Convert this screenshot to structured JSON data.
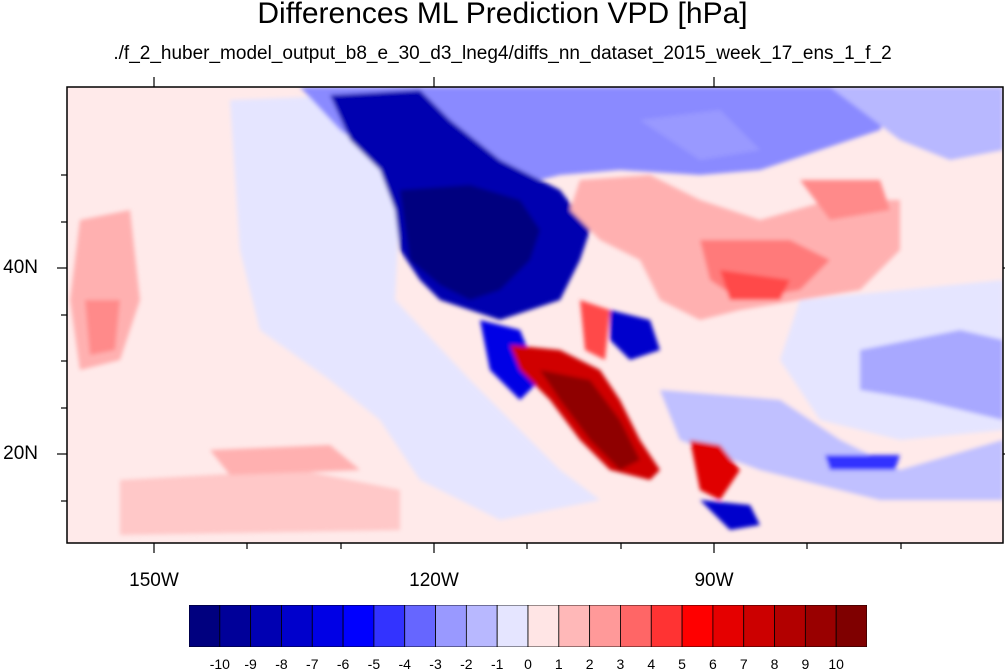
{
  "title": "Differences ML Prediction VPD [hPa]",
  "subtitle": "./f_2_huber_model_output_b8_e_30_d3_lneg4/diffs_nn_dataset_2015_week_17_ens_1_f_2",
  "map": {
    "projection": "lat-lon",
    "longitude_ticks": [
      "150W",
      "120W",
      "90W"
    ],
    "latitude_ticks": [
      "40N",
      "20N"
    ]
  },
  "colorbar": {
    "labels": [
      "-10",
      "-9",
      "-8",
      "-7",
      "-6",
      "-5",
      "-4",
      "-3",
      "-2",
      "-1",
      "0",
      "1",
      "2",
      "3",
      "4",
      "5",
      "6",
      "7",
      "8",
      "9",
      "10"
    ],
    "colors": [
      "#00007f",
      "#000099",
      "#0000b2",
      "#0000cc",
      "#0000e5",
      "#0000ff",
      "#3333ff",
      "#6666ff",
      "#9999ff",
      "#b8b8ff",
      "#e5e5ff",
      "#ffe5e5",
      "#ffb8b8",
      "#ff9999",
      "#ff6666",
      "#ff3333",
      "#ff0000",
      "#e50000",
      "#cc0000",
      "#b20000",
      "#990000",
      "#7f0000"
    ]
  }
}
